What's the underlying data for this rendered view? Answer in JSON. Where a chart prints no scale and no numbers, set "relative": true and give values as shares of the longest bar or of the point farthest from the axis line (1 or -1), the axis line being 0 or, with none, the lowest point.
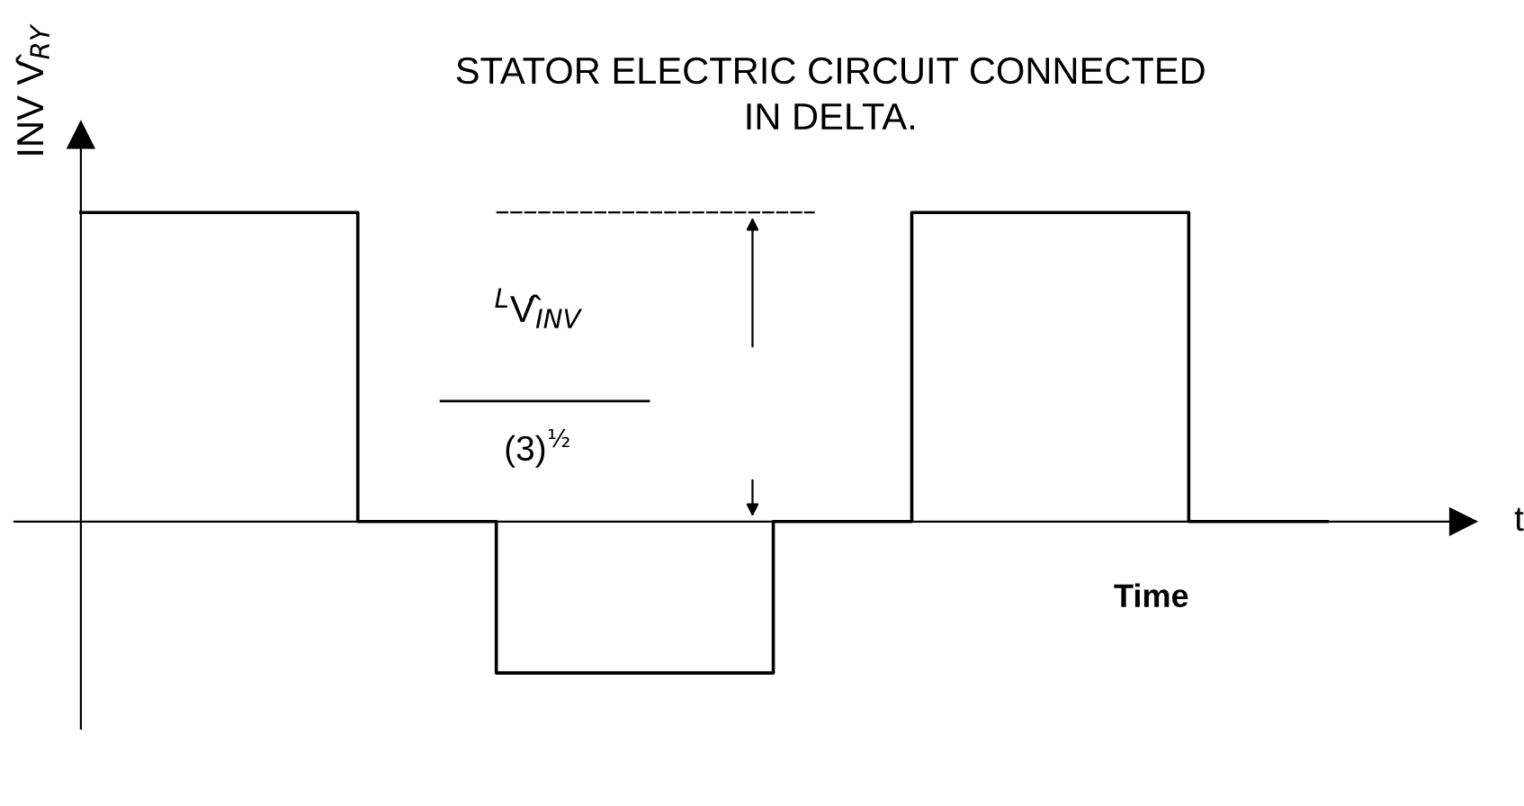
{
  "chart_data": {
    "type": "step",
    "title": "STATOR ELECTRIC CIRCUIT CONNECTED\nIN DELTA.",
    "ylabel": "INV V̂$_{RY}$",
    "xlabel": "Time",
    "relative": true,
    "categories": [
      null,
      null,
      null,
      null,
      null,
      null,
      null,
      null,
      null,
      null
    ],
    "series": [
      {
        "color": "#000000",
        "values": [
          1,
          1,
          0,
          -0.49,
          -0.49,
          0,
          1,
          1,
          0,
          0
        ]
      }
    ],
    "annotations": [
      "$^{L}$V̂$_{INV}$",
      "(3)$^{½}$",
      "t"
    ],
    "legend": false,
    "marker": "none",
    "line_style": "solid"
  }
}
